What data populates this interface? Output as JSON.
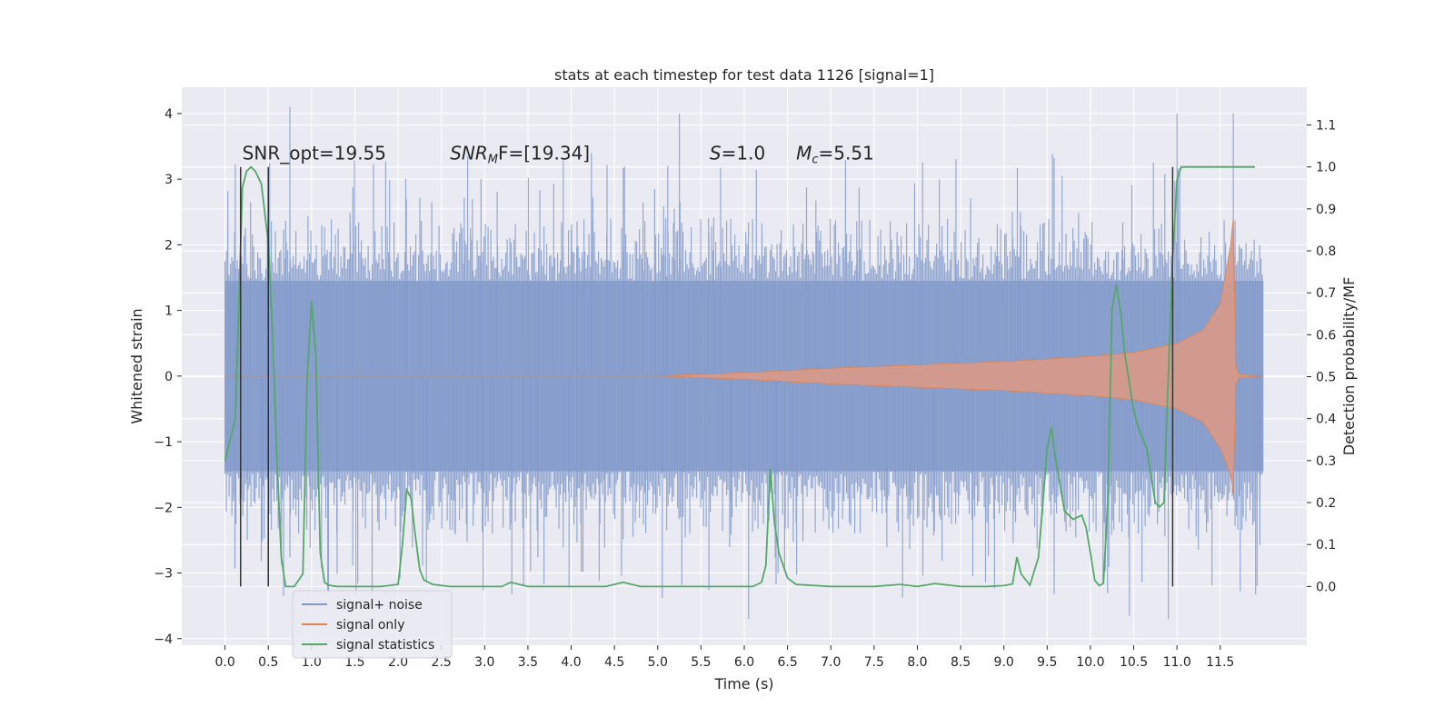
{
  "chart_data": {
    "type": "line",
    "title": "stats at each timestep for test data 1126 [signal=1]",
    "xlabel": "Time (s)",
    "ylabel": "Whitened strain",
    "y2label": "Detection probability/MF",
    "xlim": [
      -0.5,
      12.5
    ],
    "ylim": [
      -4.1,
      4.4
    ],
    "y2lim": [
      -0.14,
      1.19
    ],
    "x_ticks": [
      "0.0",
      "0.5",
      "1.0",
      "1.5",
      "2.0",
      "2.5",
      "3.0",
      "3.5",
      "4.0",
      "4.5",
      "5.0",
      "5.5",
      "6.0",
      "6.5",
      "7.0",
      "7.5",
      "8.0",
      "8.5",
      "9.0",
      "9.5",
      "10.0",
      "10.5",
      "11.0",
      "11.5"
    ],
    "y_ticks": [
      "−4",
      "−3",
      "−2",
      "−1",
      "0",
      "1",
      "2",
      "3",
      "4"
    ],
    "y2_ticks": [
      "0.0",
      "0.1",
      "0.2",
      "0.3",
      "0.4",
      "0.5",
      "0.6",
      "0.7",
      "0.8",
      "0.9",
      "1.0",
      "1.1"
    ],
    "grid": true,
    "legend_position": "bottom-left",
    "annotations": [
      {
        "text": "SNR_opt=19.55",
        "x": 0.2,
        "y": 3.3
      },
      {
        "text": "SNR",
        "sub": "M",
        "suffix": "F=[19.34]",
        "x": 2.6,
        "y": 3.3,
        "italic": true
      },
      {
        "text": "S",
        "suffix": "=1.0",
        "x": 5.6,
        "y": 3.3,
        "italic": true
      },
      {
        "text": "M",
        "sub": "c",
        "suffix": "=5.51",
        "x": 6.6,
        "y": 3.3,
        "italic": true
      }
    ],
    "vertical_markers": [
      {
        "x": 0.18,
        "y2_range": [
          0.0,
          1.0
        ]
      },
      {
        "x": 0.5,
        "y2_range": [
          0.0,
          1.0
        ]
      },
      {
        "x": 10.95,
        "y2_range": [
          0.0,
          1.0
        ]
      }
    ],
    "series": [
      {
        "name": "signal+ noise",
        "axis": "left",
        "color": "#7f97c9",
        "kind": "noise_band",
        "x_range": [
          0.0,
          12.0
        ],
        "typical_amplitude": 1.45,
        "envelope_amplitude": 2.0,
        "peak_spikes": [
          {
            "x": 0.75,
            "y": 4.1
          },
          {
            "x": 5.25,
            "y": 4.0
          },
          {
            "x": 11.0,
            "y": 4.0
          },
          {
            "x": 11.65,
            "y": 4.0
          },
          {
            "x": 1.7,
            "y": -3.6
          },
          {
            "x": 6.05,
            "y": -3.7
          },
          {
            "x": 10.45,
            "y": -3.65
          },
          {
            "x": 10.9,
            "y": -3.7
          },
          {
            "x": 3.45,
            "y": -3.2
          }
        ]
      },
      {
        "name": "signal only",
        "axis": "left",
        "color": "#dd8452",
        "kind": "chirp",
        "x": [
          0.0,
          5.0,
          6.0,
          7.0,
          8.0,
          9.0,
          10.0,
          10.5,
          11.0,
          11.3,
          11.5,
          11.62,
          11.65,
          11.68,
          11.72,
          12.0
        ],
        "amplitude": [
          0.0,
          0.0,
          0.05,
          0.12,
          0.17,
          0.22,
          0.3,
          0.36,
          0.5,
          0.7,
          1.1,
          2.0,
          2.4,
          0.15,
          0.02,
          0.0
        ]
      },
      {
        "name": "signal statistics",
        "axis": "right",
        "color": "#55a868",
        "x": [
          0.0,
          0.12,
          0.2,
          0.25,
          0.3,
          0.35,
          0.42,
          0.5,
          0.55,
          0.6,
          0.65,
          0.7,
          0.75,
          0.8,
          0.9,
          0.95,
          1.0,
          1.05,
          1.1,
          1.15,
          1.2,
          1.3,
          1.5,
          1.8,
          2.0,
          2.05,
          2.1,
          2.15,
          2.2,
          2.25,
          2.3,
          2.4,
          2.6,
          3.0,
          3.2,
          3.3,
          3.5,
          4.0,
          4.4,
          4.6,
          4.8,
          5.0,
          5.5,
          5.8,
          6.0,
          6.1,
          6.2,
          6.25,
          6.3,
          6.35,
          6.4,
          6.5,
          6.6,
          7.0,
          7.5,
          7.8,
          8.0,
          8.2,
          8.5,
          8.8,
          9.0,
          9.1,
          9.15,
          9.2,
          9.3,
          9.4,
          9.5,
          9.55,
          9.6,
          9.7,
          9.8,
          9.9,
          9.95,
          10.0,
          10.05,
          10.1,
          10.15,
          10.2,
          10.25,
          10.3,
          10.35,
          10.4,
          10.5,
          10.55,
          10.65,
          10.75,
          10.8,
          10.85,
          10.9,
          10.95,
          11.0,
          11.05,
          11.1,
          11.2,
          11.5,
          11.9
        ],
        "y": [
          0.3,
          0.4,
          0.95,
          0.99,
          1.0,
          0.99,
          0.96,
          0.82,
          0.6,
          0.3,
          0.07,
          0.0,
          0.0,
          0.0,
          0.03,
          0.5,
          0.68,
          0.55,
          0.08,
          0.01,
          0.003,
          0.0,
          0.0,
          0.0,
          0.005,
          0.1,
          0.23,
          0.21,
          0.12,
          0.04,
          0.015,
          0.005,
          0.0,
          0.0,
          0.0,
          0.01,
          0.0,
          0.0,
          0.0,
          0.01,
          0.0,
          0.0,
          0.0,
          0.0,
          0.0,
          0.0,
          0.01,
          0.05,
          0.28,
          0.15,
          0.08,
          0.02,
          0.005,
          0.0,
          0.0,
          0.005,
          0.0,
          0.007,
          0.0,
          0.0,
          0.002,
          0.006,
          0.07,
          0.03,
          0.003,
          0.07,
          0.33,
          0.38,
          0.3,
          0.18,
          0.16,
          0.17,
          0.14,
          0.08,
          0.015,
          0.002,
          0.007,
          0.2,
          0.66,
          0.72,
          0.65,
          0.55,
          0.42,
          0.38,
          0.33,
          0.2,
          0.19,
          0.2,
          0.5,
          0.78,
          0.97,
          1.0,
          1.0,
          1.0,
          1.0,
          1.0
        ]
      }
    ]
  }
}
